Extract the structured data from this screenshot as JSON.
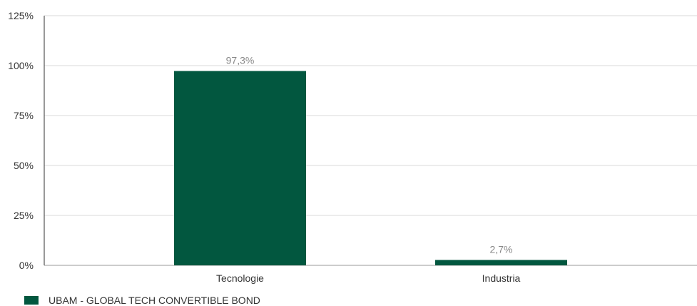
{
  "chart_data": {
    "type": "bar",
    "categories": [
      "Tecnologie",
      "Industria"
    ],
    "series": [
      {
        "name": "UBAM - GLOBAL TECH CONVERTIBLE BOND",
        "values": [
          97.3,
          2.7
        ],
        "labels": [
          "97,3%",
          "2,7%"
        ],
        "color": "#02573F"
      }
    ],
    "yticks": [
      0,
      25,
      50,
      75,
      100,
      125
    ],
    "ytick_labels": [
      "0%",
      "25%",
      "50%",
      "75%",
      "100%",
      "125%"
    ],
    "ylim": [
      0,
      125
    ],
    "grid": true,
    "legend_position": "bottom-left"
  }
}
